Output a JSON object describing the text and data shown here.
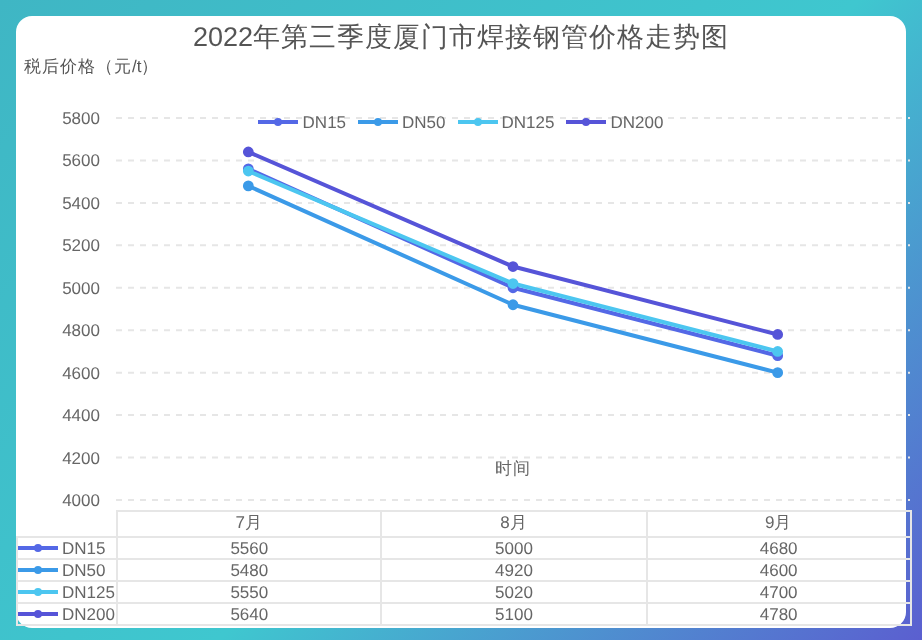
{
  "chart_data": {
    "type": "line",
    "title": "2022年第三季度厦门市焊接钢管价格走势图",
    "ylabel": "税后价格（元/t）",
    "xlabel": "时间",
    "categories": [
      "7月",
      "8月",
      "9月"
    ],
    "series": [
      {
        "name": "DN15",
        "color": "#5468e6",
        "values": [
          5560,
          5000,
          4680
        ]
      },
      {
        "name": "DN50",
        "color": "#3b9ae8",
        "values": [
          5480,
          4920,
          4600
        ]
      },
      {
        "name": "DN125",
        "color": "#4cc6f0",
        "values": [
          5550,
          5020,
          4700
        ]
      },
      {
        "name": "DN200",
        "color": "#5654d8",
        "values": [
          5640,
          5100,
          4780
        ]
      }
    ],
    "ylim": [
      4000,
      5800
    ],
    "yticks": [
      4000,
      4200,
      4400,
      4600,
      4800,
      5000,
      5200,
      5400,
      5600,
      5800
    ],
    "grid": "y",
    "legend": "top",
    "marker": "circle",
    "line_style": "solid",
    "data_labels": true
  }
}
